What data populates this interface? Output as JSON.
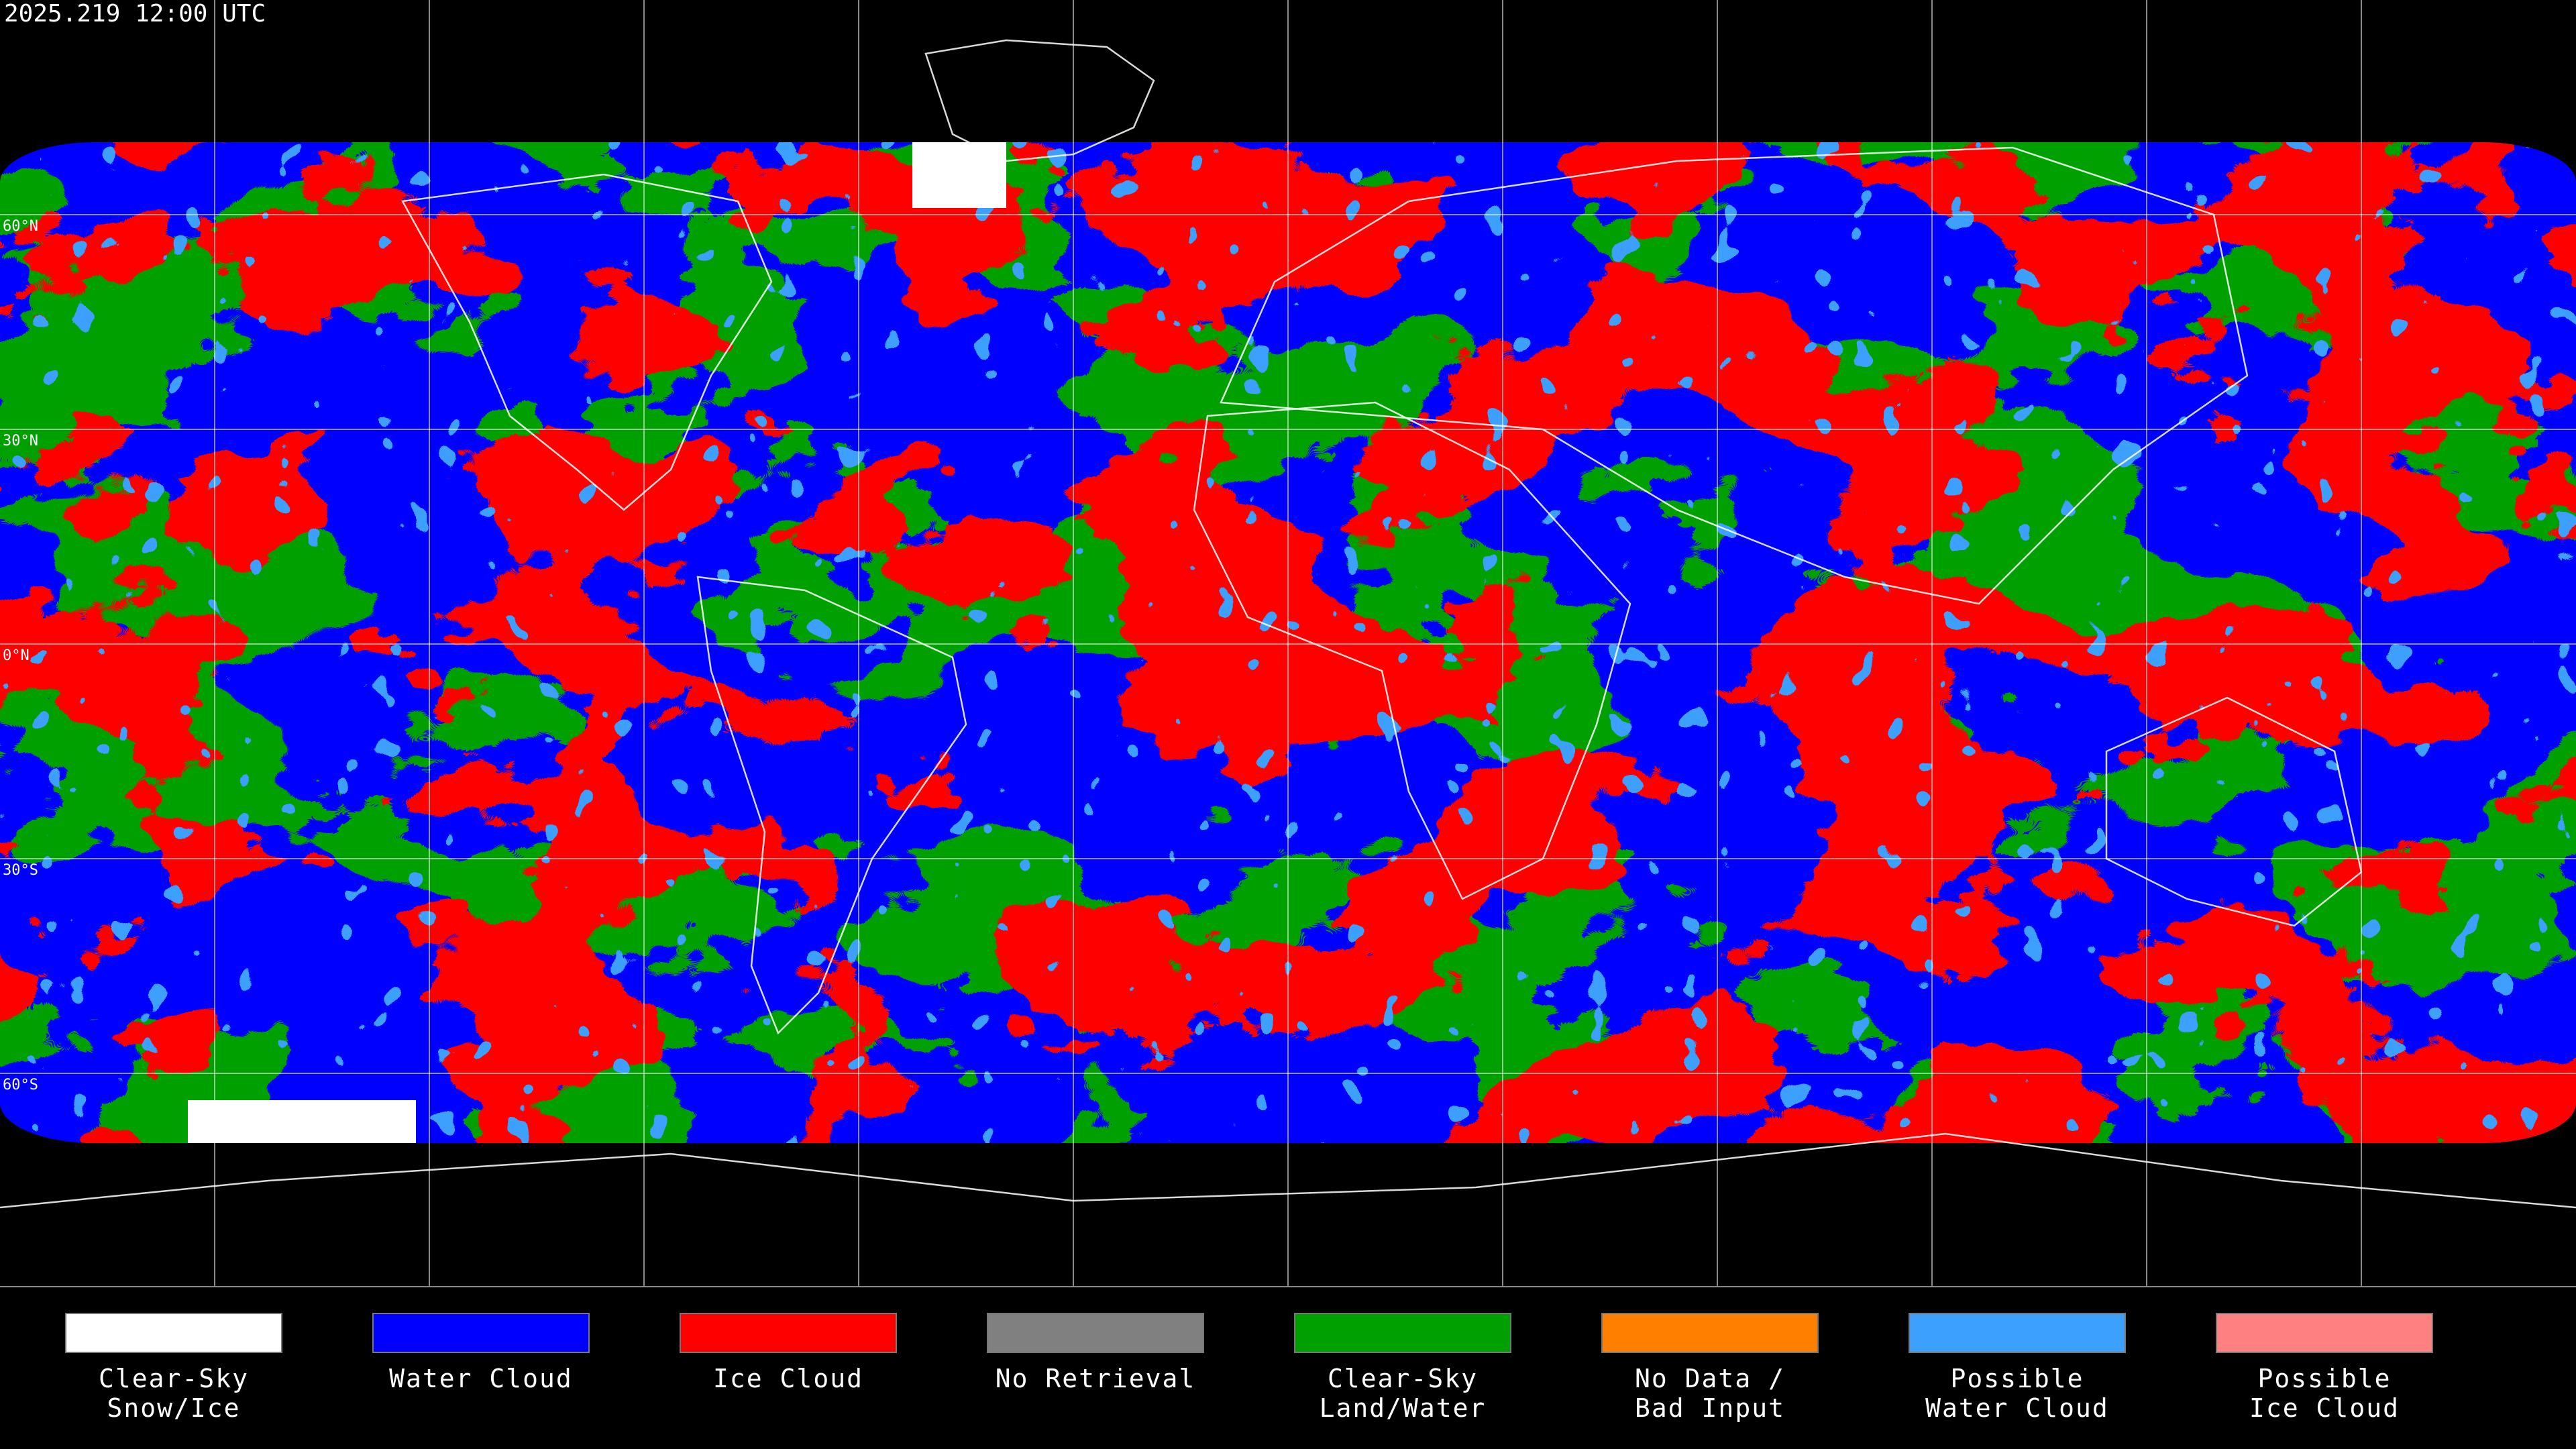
{
  "header": {
    "timestamp": "2025.219 12:00 UTC"
  },
  "map": {
    "latitude_labels": [
      "60°N",
      "30°N",
      "0°N",
      "30°S",
      "60°S"
    ]
  },
  "legend": {
    "items": [
      {
        "label": [
          "Clear-Sky",
          "Snow/Ice"
        ],
        "color": "#ffffff"
      },
      {
        "label": [
          "Water Cloud"
        ],
        "color": "#0000ff"
      },
      {
        "label": [
          "Ice Cloud"
        ],
        "color": "#ff0000"
      },
      {
        "label": [
          "No Retrieval"
        ],
        "color": "#808080"
      },
      {
        "label": [
          "Clear-Sky",
          "Land/Water"
        ],
        "color": "#00a000"
      },
      {
        "label": [
          "No Data /",
          "Bad Input"
        ],
        "color": "#ff8000"
      },
      {
        "label": [
          "Possible",
          "Water Cloud"
        ],
        "color": "#3ca0ff"
      },
      {
        "label": [
          "Possible",
          "Ice Cloud"
        ],
        "color": "#ff8080"
      }
    ]
  }
}
